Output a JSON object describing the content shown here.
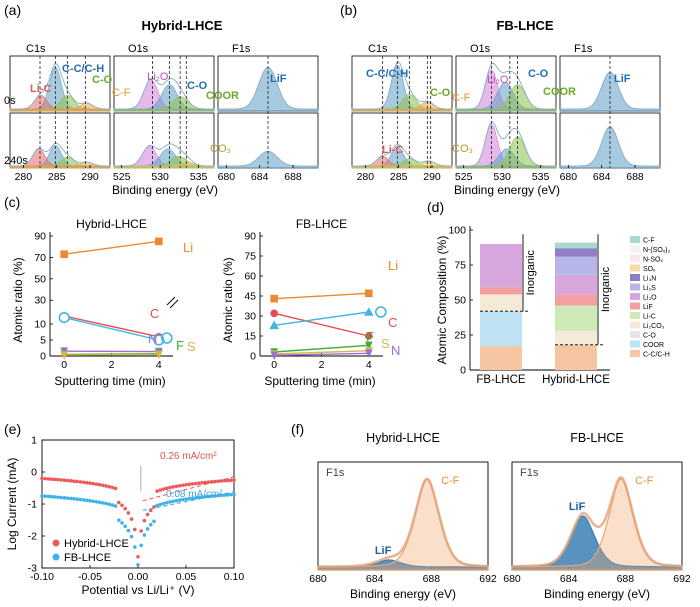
{
  "panels": {
    "a": {
      "letter": "(a)",
      "title": "Hybrid-LHCE",
      "regions": [
        "C1s",
        "O1s",
        "F1s"
      ],
      "times": [
        "0s",
        "240s"
      ],
      "labels": [
        "C-C/C-H",
        "Li-C",
        "C-O",
        "C-F",
        "Li₂O",
        "C-O",
        "COOR",
        "CO₃",
        "LiF"
      ],
      "xticks_c": [
        "280",
        "285",
        "290"
      ],
      "xticks_o": [
        "525",
        "530",
        "535"
      ],
      "xticks_f": [
        "680",
        "684",
        "688"
      ],
      "xlabel": "Binding energy (eV)"
    },
    "b": {
      "letter": "(b)",
      "title": "FB-LHCE",
      "regions": [
        "C1s",
        "O1s",
        "F1s"
      ],
      "labels": [
        "C-C/C-H",
        "C-O",
        "C-F",
        "Li-C",
        "CO₃",
        "Li₂O",
        "C-O",
        "COOR",
        "LiF"
      ],
      "xticks_c": [
        "280",
        "285",
        "290"
      ],
      "xticks_o": [
        "525",
        "530",
        "535"
      ],
      "xticks_f": [
        "680",
        "684",
        "688"
      ],
      "xlabel": "Binding energy (eV)"
    },
    "c": {
      "letter": "(c)",
      "xlabel": "Sputtering time (min)",
      "ylabel": "Atomic ratio (%)"
    },
    "d": {
      "letter": "(d)",
      "ylabel": "Atomic Composition (%)",
      "inorganic": "Inorganic"
    },
    "e": {
      "letter": "(e)",
      "xlabel": "Potential vs Li/Li⁺ (V)",
      "ylabel": "Log Current (mA)",
      "ann1": "0.26 mA/cm²",
      "ann2": "0.08 mA/cm²"
    },
    "f": {
      "letter": "(f)",
      "xlabel": "Binding energy (eV)"
    }
  },
  "chart_data": [
    {
      "type": "line",
      "title": "Hybrid-LHCE",
      "xlabel": "Sputtering time (min)",
      "ylabel": "Atomic ratio (%)",
      "x": [
        0,
        4
      ],
      "xticks": [
        0,
        2,
        4
      ],
      "yticks": [
        0,
        5,
        10,
        30,
        50,
        70,
        90
      ],
      "axis_break": [
        15,
        25
      ],
      "series": [
        {
          "name": "Li",
          "values": [
            73,
            85
          ],
          "color": "#f0862e",
          "marker": "square"
        },
        {
          "name": "C",
          "values": [
            12.5,
            6
          ],
          "color": "#e84b4b",
          "marker": "circle"
        },
        {
          "name": "O",
          "values": [
            12,
            5
          ],
          "color": "#41b6e6",
          "marker": "circle-open"
        },
        {
          "name": "N",
          "values": [
            1.5,
            1.4
          ],
          "color": "#9b6fd1",
          "marker": "triangle-down"
        },
        {
          "name": "F",
          "values": [
            0.5,
            0.7
          ],
          "color": "#3cae3c",
          "marker": "triangle-down"
        },
        {
          "name": "S",
          "values": [
            0.3,
            0.5
          ],
          "color": "#d9b44a",
          "marker": "triangle-down"
        }
      ]
    },
    {
      "type": "line",
      "title": "FB-LHCE",
      "xlabel": "Sputtering time (min)",
      "ylabel": "Atomic ratio (%)",
      "x": [
        0,
        4
      ],
      "xticks": [
        0,
        2,
        4
      ],
      "yticks": [
        0,
        15,
        30,
        45,
        60,
        75,
        90
      ],
      "series": [
        {
          "name": "Li",
          "values": [
            43,
            47
          ],
          "color": "#f0862e",
          "marker": "square"
        },
        {
          "name": "C",
          "values": [
            32,
            15
          ],
          "color": "#e84b4b",
          "marker": "circle"
        },
        {
          "name": "O",
          "values": [
            23,
            33
          ],
          "color": "#41b6e6",
          "marker": "triangle"
        },
        {
          "name": "F",
          "values": [
            3,
            8
          ],
          "color": "#3cae3c",
          "marker": "triangle-down"
        },
        {
          "name": "S",
          "values": [
            1.5,
            4
          ],
          "color": "#d9b44a",
          "marker": "triangle-down"
        },
        {
          "name": "N",
          "values": [
            0.5,
            2
          ],
          "color": "#9b6fd1",
          "marker": "triangle-down"
        }
      ]
    },
    {
      "type": "bar",
      "stacked": true,
      "ylabel": "Atomic Composition (%)",
      "ylim": [
        0,
        100
      ],
      "yticks": [
        0,
        25,
        50,
        75,
        100
      ],
      "categories": [
        "FB-LHCE",
        "Hybrid-LHCE"
      ],
      "inorganic_top": [
        42,
        18
      ],
      "series": [
        {
          "name": "C-C/C-H",
          "color": "#f6c6a2",
          "values": [
            17,
            18
          ]
        },
        {
          "name": "COOR",
          "color": "#bde3f5",
          "values": [
            25,
            0
          ]
        },
        {
          "name": "C-O",
          "color": "#e6e6e6",
          "values": [
            0,
            0
          ]
        },
        {
          "name": "Li₂CO₃",
          "color": "#f5ead7",
          "values": [
            12,
            10
          ]
        },
        {
          "name": "Li-C",
          "color": "#cfe9b6",
          "values": [
            0,
            18
          ]
        },
        {
          "name": "LiF",
          "color": "#f5a0a0",
          "values": [
            5,
            8
          ]
        },
        {
          "name": "Li₂O",
          "color": "#d6a6dc",
          "values": [
            31,
            14
          ]
        },
        {
          "name": "Li₂S",
          "color": "#b6b6e8",
          "values": [
            0,
            13
          ]
        },
        {
          "name": "Li₃N",
          "color": "#8e7fc7",
          "values": [
            0,
            6
          ]
        },
        {
          "name": "SOₓ",
          "color": "#f3dca7",
          "values": [
            0,
            0
          ]
        },
        {
          "name": "N-SOₓ",
          "color": "#f8e8e8",
          "values": [
            0,
            0
          ]
        },
        {
          "name": "N-(SOₓ)₂",
          "color": "#f2f2f2",
          "values": [
            0,
            0
          ]
        },
        {
          "name": "C-F",
          "color": "#a7d8d2",
          "values": [
            0,
            4
          ]
        }
      ]
    },
    {
      "type": "scatter",
      "xlabel": "Potential vs Li/Li⁺ (V)",
      "ylabel": "Log Current (mA)",
      "xlim": [
        -0.1,
        0.1
      ],
      "ylim": [
        -3,
        1
      ],
      "xticks": [
        -0.1,
        -0.05,
        0,
        0.05,
        0.1
      ],
      "xtick_labels": [
        "-0.10",
        "-0.05",
        "0.00",
        "0.05",
        "0.10"
      ],
      "yticks": [
        -3,
        -2,
        -1,
        0,
        1
      ],
      "series": [
        {
          "name": "Hybrid-LHCE",
          "color": "#ee5a5a",
          "y_left": -0.2,
          "y_right": -0.25
        },
        {
          "name": "FB-LHCE",
          "color": "#3fb2ea",
          "y_left": -0.75,
          "y_right": -0.7
        }
      ]
    },
    {
      "type": "area",
      "title": "Hybrid-LHCE",
      "region": "F1s",
      "xlabel": "Binding energy (eV)",
      "xticks": [
        680,
        684,
        688,
        692
      ],
      "xlim": [
        680,
        692
      ],
      "series": [
        {
          "name": "LiF",
          "center": 685,
          "height": 0.08,
          "color": "#3a7fb5"
        },
        {
          "name": "C-F",
          "center": 687.7,
          "height": 1.0,
          "color": "#f0a36b"
        }
      ]
    },
    {
      "type": "area",
      "title": "FB-LHCE",
      "region": "F1s",
      "xlabel": "Binding energy (eV)",
      "xticks": [
        680,
        684,
        688,
        692
      ],
      "xlim": [
        680,
        692
      ],
      "series": [
        {
          "name": "LiF",
          "center": 685,
          "height": 0.58,
          "color": "#3a7fb5"
        },
        {
          "name": "C-F",
          "center": 687.7,
          "height": 1.0,
          "color": "#f0a36b"
        }
      ]
    }
  ]
}
